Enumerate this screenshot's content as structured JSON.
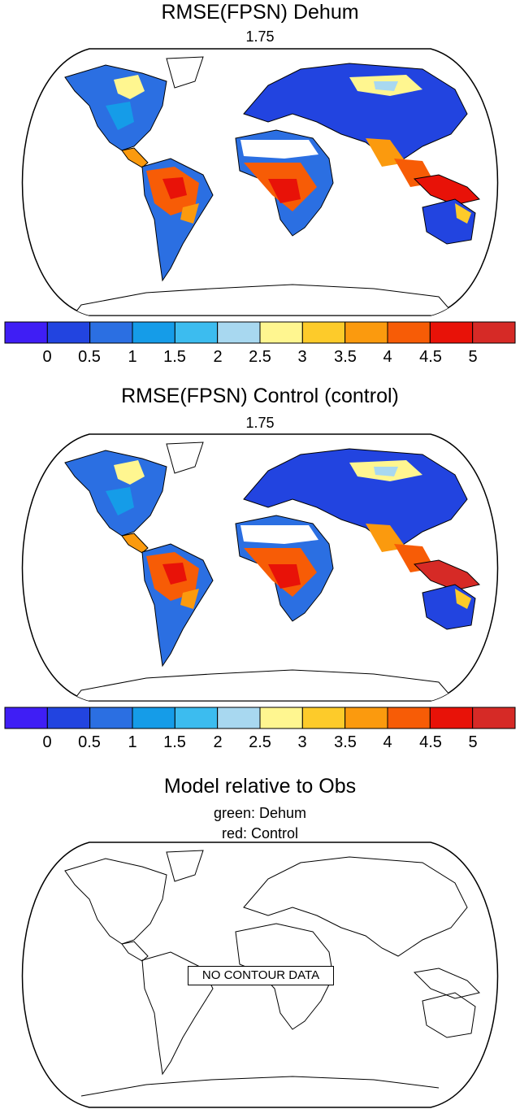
{
  "panels": [
    {
      "title": "RMSE(FPSN) Dehum",
      "subtitle": "1.75"
    },
    {
      "title": "RMSE(FPSN) Control (control)",
      "subtitle": "1.75"
    }
  ],
  "colorbar": {
    "labels": [
      "0",
      "0.5",
      "1",
      "1.5",
      "2",
      "2.5",
      "3",
      "3.5",
      "4",
      "4.5",
      "5"
    ],
    "colors": [
      "#3f1ef5",
      "#2244e0",
      "#2b6fe2",
      "#159ce8",
      "#3cbcef",
      "#a8d8f0",
      "#fff690",
      "#fdcb2a",
      "#fb9a0e",
      "#f75c06",
      "#e81208",
      "#d62a26"
    ]
  },
  "comparison": {
    "title": "Model relative to Obs",
    "legend_line1": "green: Dehum",
    "legend_line2": "red: Control",
    "no_data_text": "NO CONTOUR DATA"
  }
}
